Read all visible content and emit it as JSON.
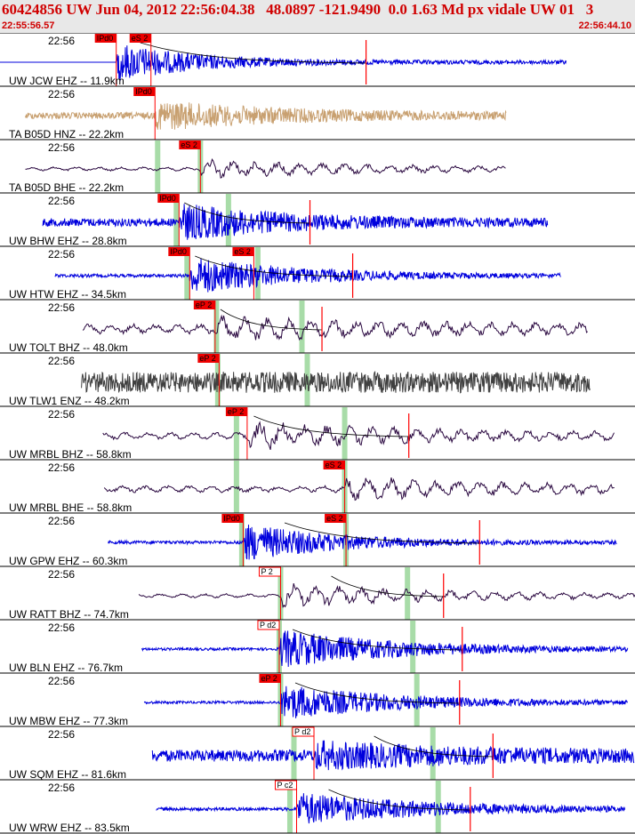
{
  "header": {
    "title": "60424856 UW Jun 04, 2012 22:56:04.38   48.0897 -121.9490  0.0 1.63 Md px vidale UW 01   3",
    "start_time": "22:55:56.57",
    "end_time": "22:56:44.10"
  },
  "colors": {
    "title": "#d00000",
    "pick_fill": "#ee0000",
    "pick_line": "#ff0000",
    "green_band": "#a8dca8",
    "blue": "#0000dd",
    "tan": "#c8a070",
    "purple": "#2a0840",
    "gray": "#404040",
    "curve": "#000000"
  },
  "chart_data": {
    "type": "line",
    "x_unit": "seconds from 22:55:56.57",
    "xlim": [
      0,
      47.53
    ],
    "traces": [
      {
        "label": "UW JCW EHZ -- 11.9km",
        "time": "22:56",
        "color": "blue",
        "start": 0,
        "end": 42.4,
        "pre_flat": true,
        "amp": 0.75,
        "noise": 0.07,
        "decay": 6,
        "picks": [
          {
            "label": "IPd0",
            "t": 8.7,
            "style": "fill"
          },
          {
            "label": "eS 2",
            "t": 11.3,
            "style": "fill"
          }
        ],
        "green": [],
        "red_tick": 27.4,
        "coda": [
          10.5,
          27.4
        ]
      },
      {
        "label": "TA B05D HNZ -- 22.2km",
        "time": "22:56",
        "color": "tan",
        "start": 1.9,
        "end": 37.9,
        "amp": 0.6,
        "noise": 0.12,
        "decay": 10,
        "onset": 11.6,
        "picks": [
          {
            "label": "IPd0",
            "t": 11.6,
            "style": "fill"
          }
        ],
        "green": [],
        "red_tick": null,
        "coda": null
      },
      {
        "label": "TA B05D BHE -- 22.2km",
        "time": "22:56",
        "color": "purple",
        "start": 1.9,
        "end": 37.9,
        "amp": 0.4,
        "noise": 0.08,
        "decay": 12,
        "onset": 15.0,
        "slow": true,
        "picks": [
          {
            "label": "eS 2",
            "t": 15.0,
            "style": "fill"
          }
        ],
        "green": [
          11.8,
          15.0
        ],
        "red_tick": null,
        "coda": null
      },
      {
        "label": "UW BHW EHZ -- 28.8km",
        "time": "22:56",
        "color": "blue",
        "start": 3.2,
        "end": 41.0,
        "amp": 0.75,
        "noise": 0.15,
        "decay": 8,
        "onset": 13.4,
        "picks": [
          {
            "label": "IPd0",
            "t": 13.4,
            "style": "fill"
          }
        ],
        "green": [
          13.2,
          17.1
        ],
        "red_tick": 23.2,
        "coda": [
          13.8,
          23.2
        ]
      },
      {
        "label": "UW HTW EHZ -- 34.5km",
        "time": "22:56",
        "color": "blue",
        "start": 4.1,
        "end": 42.0,
        "amp": 0.75,
        "noise": 0.06,
        "decay": 8,
        "onset": 14.2,
        "picks": [
          {
            "label": "IPd0",
            "t": 14.2,
            "style": "fill"
          },
          {
            "label": "eS 2",
            "t": 19.0,
            "style": "fill"
          }
        ],
        "green": [
          14.0,
          19.3
        ],
        "red_tick": 26.4,
        "coda": [
          14.6,
          26.4
        ]
      },
      {
        "label": "UW TOLT BHZ -- 48.0km",
        "time": "22:56",
        "color": "purple",
        "start": 6.2,
        "end": 44.0,
        "amp": 0.55,
        "noise": 0.2,
        "decay": 14,
        "onset": 16.1,
        "slow": true,
        "picks": [
          {
            "label": "eP 2",
            "t": 16.1,
            "style": "fill"
          }
        ],
        "green": [
          16.2,
          22.6
        ],
        "red_tick": 24.1,
        "coda": [
          16.5,
          24.1
        ]
      },
      {
        "label": "UW TLW1 ENZ -- 48.2km",
        "time": "22:56",
        "color": "gray",
        "start": 6.1,
        "end": 44.2,
        "amp": 0.4,
        "noise": 0.38,
        "decay": 30,
        "onset": 16.4,
        "picks": [
          {
            "label": "eP 2",
            "t": 16.4,
            "style": "fill"
          }
        ],
        "green": [
          16.3,
          23.0
        ],
        "red_tick": null,
        "coda": null
      },
      {
        "label": "UW MRBL BHZ -- 58.8km",
        "time": "22:56",
        "color": "purple",
        "start": 7.7,
        "end": 46.0,
        "amp": 0.6,
        "noise": 0.15,
        "decay": 12,
        "onset": 18.5,
        "slow": true,
        "picks": [
          {
            "label": "eP 2",
            "t": 18.5,
            "style": "fill"
          }
        ],
        "green": [
          17.7,
          25.8
        ],
        "red_tick": 30.6,
        "coda": [
          19.0,
          30.6
        ]
      },
      {
        "label": "UW MRBL BHE -- 58.8km",
        "time": "22:56",
        "color": "purple",
        "start": 7.8,
        "end": 46.0,
        "amp": 0.55,
        "noise": 0.14,
        "decay": 12,
        "onset": 25.8,
        "slow": true,
        "picks": [
          {
            "label": "eS 2",
            "t": 25.8,
            "style": "fill"
          }
        ],
        "green": [
          17.7,
          25.8
        ],
        "red_tick": null,
        "coda": null
      },
      {
        "label": "UW GPW EHZ -- 60.3km",
        "time": "22:56",
        "color": "blue",
        "start": 8.1,
        "end": 46.2,
        "amp": 0.75,
        "noise": 0.06,
        "decay": 7,
        "onset": 18.2,
        "picks": [
          {
            "label": "IPd0",
            "t": 18.2,
            "style": "fill"
          },
          {
            "label": "eS 2",
            "t": 25.9,
            "style": "fill"
          }
        ],
        "green": [
          18.1,
          25.9
        ],
        "red_tick": 35.9,
        "coda": [
          21.3,
          35.9
        ]
      },
      {
        "label": "UW RATT BHZ -- 74.7km",
        "time": "22:56",
        "color": "purple",
        "start": 10.4,
        "end": 48.0,
        "amp": 0.5,
        "noise": 0.08,
        "decay": 12,
        "onset": 21.0,
        "slow": true,
        "picks": [
          {
            "label": "P 2",
            "t": 21.0,
            "style": "outline"
          }
        ],
        "green": [
          21.0,
          30.5
        ],
        "red_tick": 33.2,
        "coda": [
          24.8,
          33.2
        ]
      },
      {
        "label": "UW BLN EHZ -- 76.7km",
        "time": "22:56",
        "color": "blue",
        "start": 10.6,
        "end": 47.0,
        "amp": 0.75,
        "noise": 0.05,
        "decay": 9,
        "onset": 20.9,
        "picks": [
          {
            "label": "P d2",
            "t": 20.9,
            "style": "outline"
          }
        ],
        "green": [
          20.9,
          30.9
        ],
        "red_tick": 34.6,
        "coda": [
          21.9,
          34.6
        ]
      },
      {
        "label": "UW MBW EHZ -- 77.3km",
        "time": "22:56",
        "color": "blue",
        "start": 10.8,
        "end": 47.0,
        "amp": 0.7,
        "noise": 0.05,
        "decay": 9,
        "onset": 21.0,
        "picks": [
          {
            "label": "eP 2",
            "t": 21.0,
            "style": "fill"
          }
        ],
        "green": [
          21.0,
          31.2
        ],
        "red_tick": 34.4,
        "coda": [
          22.1,
          34.4
        ]
      },
      {
        "label": "UW SQM EHZ -- 81.6km",
        "time": "22:56",
        "color": "blue",
        "start": 11.4,
        "end": 47.5,
        "amp": 0.6,
        "noise": 0.22,
        "decay": 12,
        "onset": 23.5,
        "picks": [
          {
            "label": "P d2",
            "t": 23.5,
            "style": "outline"
          }
        ],
        "green": [
          22.0,
          32.4
        ],
        "red_tick": 36.9,
        "coda": [
          28.0,
          36.9
        ]
      },
      {
        "label": "UW WRW EHZ -- 83.5km",
        "time": "22:56",
        "color": "blue",
        "start": 11.7,
        "end": 46.8,
        "amp": 0.65,
        "noise": 0.06,
        "decay": 10,
        "onset": 22.2,
        "picks": [
          {
            "label": "P c2",
            "t": 22.2,
            "style": "outline"
          }
        ],
        "green": [
          21.7,
          32.8
        ],
        "red_tick": 35.2,
        "coda": [
          24.6,
          35.2
        ]
      }
    ]
  }
}
